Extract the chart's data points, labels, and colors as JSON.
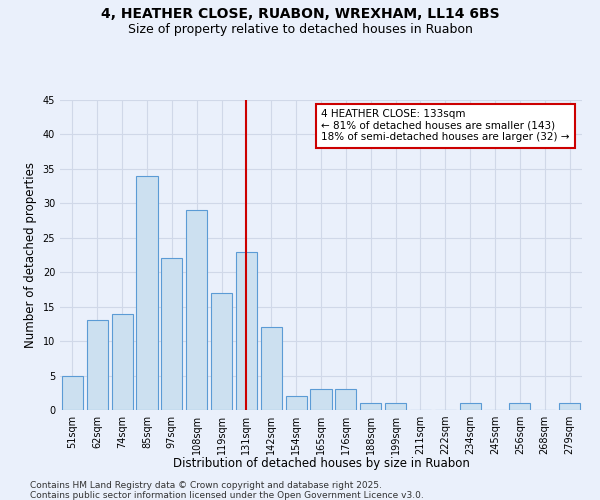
{
  "title": "4, HEATHER CLOSE, RUABON, WREXHAM, LL14 6BS",
  "subtitle": "Size of property relative to detached houses in Ruabon",
  "xlabel": "Distribution of detached houses by size in Ruabon",
  "ylabel": "Number of detached properties",
  "categories": [
    "51sqm",
    "62sqm",
    "74sqm",
    "85sqm",
    "97sqm",
    "108sqm",
    "119sqm",
    "131sqm",
    "142sqm",
    "154sqm",
    "165sqm",
    "176sqm",
    "188sqm",
    "199sqm",
    "211sqm",
    "222sqm",
    "234sqm",
    "245sqm",
    "256sqm",
    "268sqm",
    "279sqm"
  ],
  "values": [
    5,
    13,
    14,
    34,
    22,
    29,
    17,
    23,
    12,
    2,
    3,
    3,
    1,
    1,
    0,
    0,
    1,
    0,
    1,
    0,
    1
  ],
  "bar_color": "#cce0f0",
  "bar_edge_color": "#5b9bd5",
  "grid_color": "#d0d8e8",
  "background_color": "#eaf0fb",
  "annotation_text": "4 HEATHER CLOSE: 133sqm\n← 81% of detached houses are smaller (143)\n18% of semi-detached houses are larger (32) →",
  "annotation_box_color": "#ffffff",
  "annotation_box_edge": "#cc0000",
  "vline_x_index": 7,
  "vline_color": "#cc0000",
  "ylim": [
    0,
    45
  ],
  "yticks": [
    0,
    5,
    10,
    15,
    20,
    25,
    30,
    35,
    40,
    45
  ],
  "footnote1": "Contains HM Land Registry data © Crown copyright and database right 2025.",
  "footnote2": "Contains public sector information licensed under the Open Government Licence v3.0.",
  "title_fontsize": 10,
  "subtitle_fontsize": 9,
  "axis_label_fontsize": 8.5,
  "tick_fontsize": 7,
  "annotation_fontsize": 7.5,
  "footnote_fontsize": 6.5
}
